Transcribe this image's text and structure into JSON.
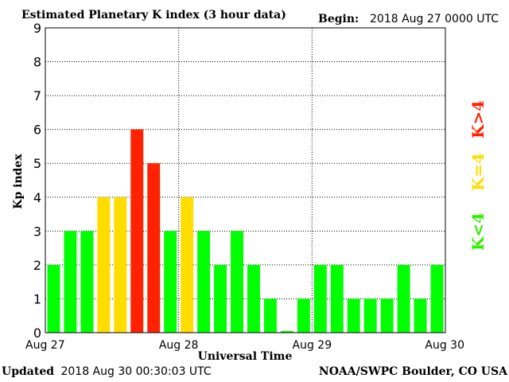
{
  "header": {
    "title": "Estimated Planetary K index (3 hour data)",
    "begin_label": "Begin:",
    "begin_value": "2018 Aug 27 0000 UTC"
  },
  "footer": {
    "updated_label": "Updated",
    "updated_value": "2018 Aug 30 00:30:03 UTC",
    "source": "NOAA/SWPC Boulder, CO USA"
  },
  "legend": {
    "high": "K>4",
    "equal": "K=4",
    "low": "K<4"
  },
  "colors": {
    "low": "#00ff00",
    "equal": "#ffdd00",
    "high": "#ff2200",
    "grid": "#000000"
  },
  "chart_data": {
    "type": "bar",
    "title": "Estimated Planetary K index (3 hour data)",
    "xlabel": "Universal Time",
    "ylabel": "Kp index",
    "ylim": [
      0,
      9
    ],
    "yticks": [
      "0",
      "1",
      "2",
      "3",
      "4",
      "5",
      "6",
      "7",
      "8",
      "9"
    ],
    "xticks": [
      "Aug 27",
      "Aug 28",
      "Aug 29",
      "Aug 30"
    ],
    "grid": true,
    "values": [
      2,
      3,
      3,
      4,
      4,
      6,
      5,
      3,
      4,
      3,
      2,
      3,
      2,
      1,
      0.05,
      1,
      2,
      2,
      1,
      1,
      1,
      2,
      1,
      2
    ]
  }
}
